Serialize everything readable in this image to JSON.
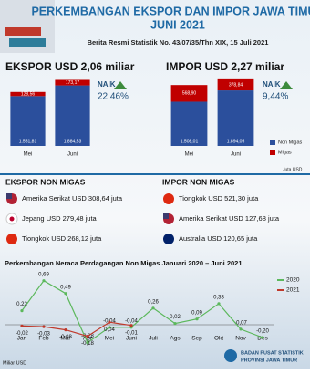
{
  "header": {
    "title": "PERKEMBANGAN EKSPOR DAN IMPOR JAWA TIMUR",
    "title2": "JUNI 2021",
    "subtitle": "Berita Resmi Statistik No. 43/07/35/Thn XIX, 15 Juli 2021"
  },
  "ekspor": {
    "heading": "EKSPOR USD 2,06 miliar",
    "trend": "NAIK",
    "change": "22,46%"
  },
  "impor": {
    "heading": "IMPOR USD 2,27 miliar",
    "trend": "NAIK",
    "change": "9,44%"
  },
  "legend_unit": "Juta USD",
  "ekspor_non_migas": {
    "heading": "EKSPOR NON MIGAS",
    "items": [
      "Amerika Serikat USD 308,64 juta",
      "Jepang USD 279,48 juta",
      "Tiongkok USD 268,12 juta"
    ]
  },
  "impor_non_migas": {
    "heading": "IMPOR NON MIGAS",
    "items": [
      "Tiongkok USD 521,30 juta",
      "Amerika Serikat USD 127,68 juta",
      "Australia USD 120,65 juta"
    ]
  },
  "unit_note": "Miliar USD",
  "logo": {
    "line1": "BADAN PUSAT STATISTIK",
    "line2": "PROVINSI JAWA TIMUR"
  },
  "chart_data": [
    {
      "type": "stacked_bar",
      "categories": [
        "Mei",
        "Juni"
      ],
      "ylim": [
        0,
        2100
      ],
      "series": [
        {
          "color": "#2b4f9c",
          "values": [
            1551.81,
            1884.53
          ],
          "value_labels": [
            "1.551,81",
            "1.884,53"
          ]
        },
        {
          "color": "#c00000",
          "values": [
            128.56,
            173.17
          ],
          "value_labels": [
            "128,56",
            "173,17"
          ]
        }
      ]
    },
    {
      "type": "stacked_bar",
      "categories": [
        "Mei",
        "Juni"
      ],
      "ylim": [
        0,
        2300
      ],
      "series": [
        {
          "name": "Non Migas",
          "color": "#2b4f9c",
          "values": [
            1508.01,
            1894.05
          ],
          "value_labels": [
            "1.508,01",
            "1.894,05"
          ]
        },
        {
          "name": "Migas",
          "color": "#c00000",
          "values": [
            568.9,
            378.84
          ],
          "value_labels": [
            "568,90",
            "378,84"
          ]
        }
      ]
    },
    {
      "type": "line",
      "title": "Perkembangan Neraca Perdagangan Non Migas Januari 2020 – Juni 2021",
      "categories": [
        "Jan",
        "Feb",
        "Mar",
        "Apr",
        "Mei",
        "Juni",
        "Juli",
        "Ags",
        "Sep",
        "Okt",
        "Nov",
        "Des"
      ],
      "ylim": [
        -0.4,
        0.8
      ],
      "series": [
        {
          "name": "2020",
          "color": "#5cb85c",
          "values": [
            0.22,
            0.69,
            0.49,
            -0.28,
            -0.04,
            -0.04,
            0.26,
            0.02,
            0.09,
            0.33,
            -0.07,
            -0.2
          ],
          "value_labels": [
            "0,22",
            "0,69",
            "0,49",
            "-0,28",
            "-0,04",
            "-0,04",
            "0,26",
            "0,02",
            "0,09",
            "0,33",
            "-0,07",
            "-0,20"
          ]
        },
        {
          "name": "2021",
          "color": "#c0392b",
          "values": [
            -0.02,
            -0.03,
            -0.08,
            -0.18,
            0.04,
            -0.01,
            null,
            null,
            null,
            null,
            null,
            null
          ],
          "value_labels": [
            "-0,02",
            "-0,03",
            "-0,08",
            "-0,18",
            "0,04",
            "-0,01",
            null,
            null,
            null,
            null,
            null,
            null
          ]
        }
      ]
    }
  ]
}
